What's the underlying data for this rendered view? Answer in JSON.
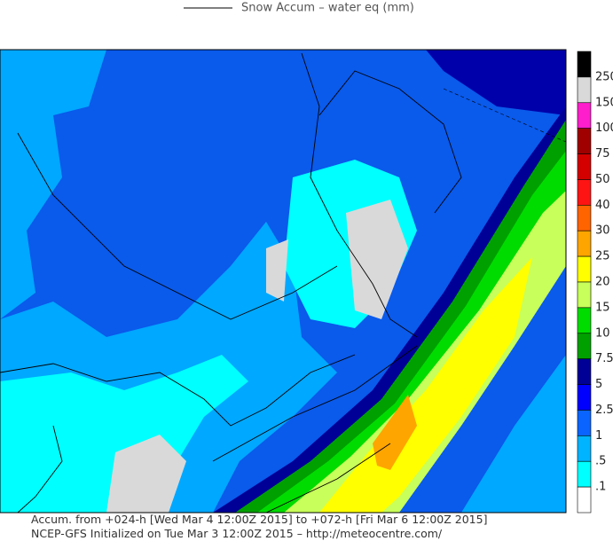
{
  "header": {
    "title": "Snow Accum – water eq (mm)"
  },
  "legend": {
    "colors": [
      "#000000",
      "#d9d9d9",
      "#ff1ecc",
      "#a00000",
      "#d40000",
      "#ff1414",
      "#ff6400",
      "#ffa500",
      "#ffff00",
      "#c8ff5a",
      "#00dc00",
      "#00a000",
      "#000096",
      "#0000ff",
      "#0a64ff",
      "#00b4ff",
      "#00ffff",
      "#ffffff"
    ],
    "labels": [
      "250",
      "150",
      "100",
      "75",
      "50",
      "40",
      "30",
      "25",
      "20",
      "15",
      "10",
      "7.5",
      "5",
      "2.5",
      "1",
      ".5",
      ".1"
    ]
  },
  "footer": {
    "line1": "Accum. from +024-h [Wed Mar 4 12:00Z 2015] to +072-h [Fri Mar 6 12:00Z 2015]",
    "line2": "NCEP-GFS Initialized on Tue Mar 3 12:00Z 2015 – http://meteocentre.com/"
  }
}
